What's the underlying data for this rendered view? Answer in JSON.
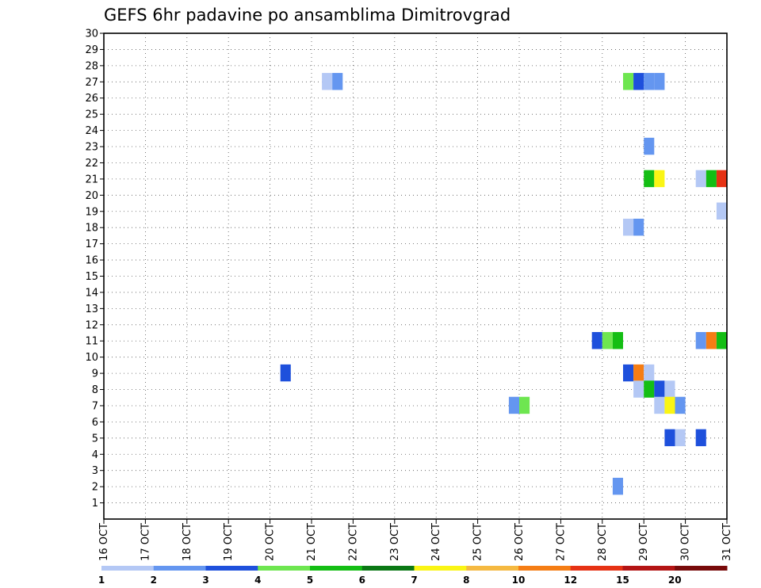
{
  "chart_data": {
    "type": "heatmap",
    "title": "GEFS 6hr padavine po ansamblima Dimitrovgrad",
    "xlabel": "",
    "ylabel": "",
    "x_ticks": [
      "16 OCT",
      "17 OCT",
      "18 OCT",
      "19 OCT",
      "20 OCT",
      "21 OCT",
      "22 OCT",
      "23 OCT",
      "24 OCT",
      "25 OCT",
      "26 OCT",
      "27 OCT",
      "28 OCT",
      "29 OCT",
      "30 OCT",
      "31 OCT"
    ],
    "x_range_days": [
      16,
      31
    ],
    "y_ticks": [
      1,
      2,
      3,
      4,
      5,
      6,
      7,
      8,
      9,
      10,
      11,
      12,
      13,
      14,
      15,
      16,
      17,
      18,
      19,
      20,
      21,
      22,
      23,
      24,
      25,
      26,
      27,
      28,
      29,
      30
    ],
    "y_range": [
      0,
      30
    ],
    "grid": true,
    "colorbar": {
      "position": "bottom",
      "labels": [
        "1",
        "2",
        "3",
        "4",
        "5",
        "6",
        "7",
        "8",
        "10",
        "12",
        "15",
        "20"
      ],
      "colors": [
        "#b4c8f5",
        "#6496f0",
        "#1e50dc",
        "#6ee650",
        "#14be14",
        "#0a7814",
        "#faf514",
        "#f5b941",
        "#f57d14",
        "#e63214",
        "#b41414",
        "#780a0a"
      ]
    },
    "cells": [
      {
        "member": 27,
        "day": 21.25,
        "v": 1
      },
      {
        "member": 27,
        "day": 21.5,
        "v": 2
      },
      {
        "member": 27,
        "day": 28.5,
        "v": 4
      },
      {
        "member": 27,
        "day": 28.75,
        "v": 3
      },
      {
        "member": 27,
        "day": 29.0,
        "v": 2
      },
      {
        "member": 27,
        "day": 29.25,
        "v": 2
      },
      {
        "member": 23,
        "day": 29.0,
        "v": 2
      },
      {
        "member": 21,
        "day": 29.0,
        "v": 5
      },
      {
        "member": 21,
        "day": 29.25,
        "v": 7
      },
      {
        "member": 21,
        "day": 30.25,
        "v": 1
      },
      {
        "member": 21,
        "day": 30.5,
        "v": 5
      },
      {
        "member": 21,
        "day": 30.75,
        "v": 12
      },
      {
        "member": 19,
        "day": 30.75,
        "v": 1
      },
      {
        "member": 18,
        "day": 28.5,
        "v": 1
      },
      {
        "member": 18,
        "day": 28.75,
        "v": 2
      },
      {
        "member": 11,
        "day": 27.75,
        "v": 3
      },
      {
        "member": 11,
        "day": 28.0,
        "v": 4
      },
      {
        "member": 11,
        "day": 28.25,
        "v": 5
      },
      {
        "member": 11,
        "day": 30.25,
        "v": 2
      },
      {
        "member": 11,
        "day": 30.5,
        "v": 10
      },
      {
        "member": 11,
        "day": 30.75,
        "v": 5
      },
      {
        "member": 9,
        "day": 20.25,
        "v": 3
      },
      {
        "member": 9,
        "day": 28.5,
        "v": 3
      },
      {
        "member": 9,
        "day": 28.75,
        "v": 10
      },
      {
        "member": 9,
        "day": 29.0,
        "v": 1
      },
      {
        "member": 8,
        "day": 28.75,
        "v": 1
      },
      {
        "member": 8,
        "day": 29.0,
        "v": 5
      },
      {
        "member": 8,
        "day": 29.25,
        "v": 3
      },
      {
        "member": 8,
        "day": 29.5,
        "v": 1
      },
      {
        "member": 7,
        "day": 25.75,
        "v": 2
      },
      {
        "member": 7,
        "day": 26.0,
        "v": 4
      },
      {
        "member": 7,
        "day": 29.25,
        "v": 1
      },
      {
        "member": 7,
        "day": 29.5,
        "v": 7
      },
      {
        "member": 7,
        "day": 29.75,
        "v": 2
      },
      {
        "member": 5,
        "day": 29.5,
        "v": 3
      },
      {
        "member": 5,
        "day": 29.75,
        "v": 1
      },
      {
        "member": 5,
        "day": 30.25,
        "v": 3
      },
      {
        "member": 2,
        "day": 28.25,
        "v": 2
      }
    ]
  }
}
